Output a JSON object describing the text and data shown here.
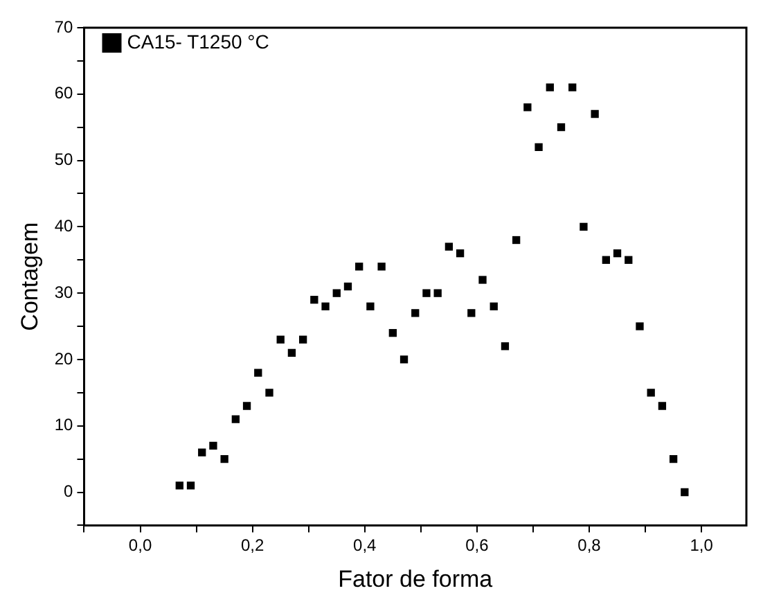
{
  "chart_data": {
    "type": "scatter",
    "xlabel": "Fator de forma",
    "ylabel": "Contagem",
    "legend": "top left",
    "marker": "square",
    "grid": false,
    "xlim": [
      -0.1,
      1.08
    ],
    "ylim": [
      -5,
      70
    ],
    "xticks": [
      {
        "value": -0.1,
        "label": null
      },
      {
        "value": 0,
        "label": "0,0"
      },
      {
        "value": 0.1,
        "label": null
      },
      {
        "value": 0.2,
        "label": "0,2"
      },
      {
        "value": 0.3,
        "label": null
      },
      {
        "value": 0.4,
        "label": "0,4"
      },
      {
        "value": 0.5,
        "label": null
      },
      {
        "value": 0.6,
        "label": "0,6"
      },
      {
        "value": 0.7,
        "label": null
      },
      {
        "value": 0.8,
        "label": "0,8"
      },
      {
        "value": 0.9,
        "label": null
      },
      {
        "value": 1,
        "label": "1,0"
      }
    ],
    "yticks": [
      {
        "value": -5,
        "label": null
      },
      0,
      {
        "value": 5,
        "label": null
      },
      10,
      {
        "value": 15,
        "label": null
      },
      20,
      {
        "value": 25,
        "label": null
      },
      30,
      {
        "value": 35,
        "label": null
      },
      40,
      {
        "value": 45,
        "label": null
      },
      50,
      {
        "value": 55,
        "label": null
      },
      60,
      {
        "value": 65,
        "label": null
      },
      70
    ],
    "series": [
      {
        "name": "CA15- T1250 °C",
        "color": "#000000",
        "x": [
          0.07,
          0.09,
          0.11,
          0.13,
          0.15,
          0.17,
          0.19,
          0.21,
          0.23,
          0.25,
          0.27,
          0.29,
          0.31,
          0.33,
          0.35,
          0.37,
          0.39,
          0.41,
          0.43,
          0.45,
          0.47,
          0.49,
          0.51,
          0.53,
          0.55,
          0.57,
          0.59,
          0.61,
          0.63,
          0.65,
          0.67,
          0.69,
          0.71,
          0.73,
          0.75,
          0.77,
          0.79,
          0.81,
          0.83,
          0.85,
          0.87,
          0.89,
          0.91,
          0.93,
          0.95,
          0.97
        ],
        "values": [
          1,
          1,
          6,
          7,
          5,
          11,
          13,
          18,
          15,
          23,
          21,
          23,
          29,
          28,
          30,
          31,
          34,
          28,
          34,
          24,
          20,
          27,
          30,
          30,
          37,
          36,
          27,
          32,
          28,
          22,
          38,
          58,
          52,
          61,
          55,
          61,
          40,
          57,
          35,
          36,
          35,
          25,
          15,
          13,
          5,
          0
        ]
      }
    ]
  }
}
